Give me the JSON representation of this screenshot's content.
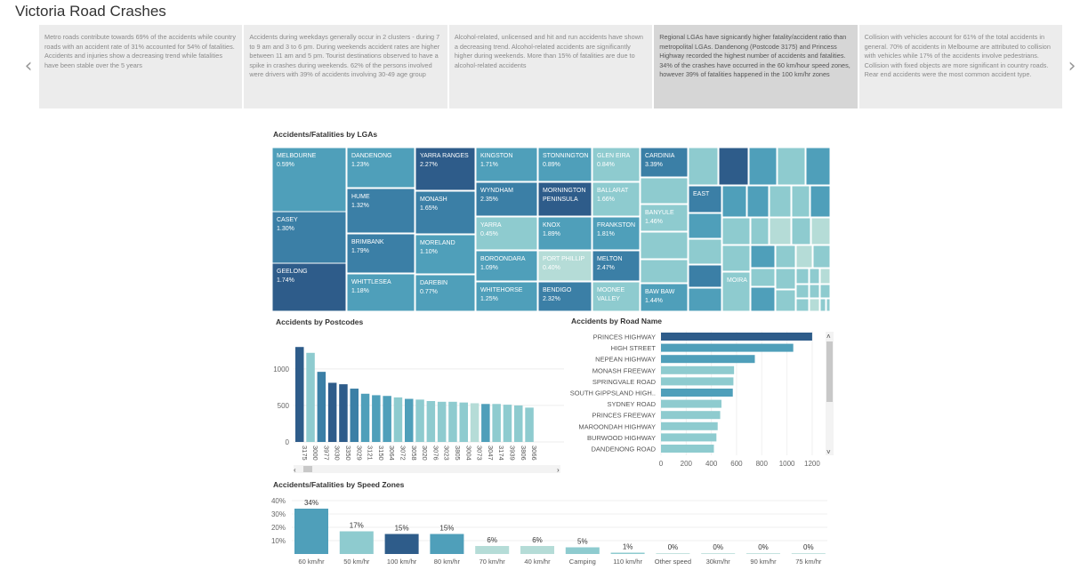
{
  "app": {
    "title": "Victoria Road Crashes"
  },
  "nav": {
    "prev": "‹",
    "next": "›"
  },
  "story_points": [
    "Metro roads contribute towards 69% of the accidents while country roads with an accident rate of 31% accounted for 54% of fatalities. Accidents and injuries show a decreasing trend while fatalities have been stable over the 5 years",
    "Accidents during weekdays generally occur in 2 clusters - during 7 to 9 am and 3 to 6 pm. During weekends accident rates are higher between 11 am and 5 pm. Tourist destinations observed to have a spike in crashes during weekends. 62% of the persons involved were drivers with 39% of accidents involving 30-49 age group",
    "Alcohol-related, unlicensed and hit and run accidents have shown a decreasing trend. Alcohol-related accidents are significantly higher during weekends. More than 15% of fatalities are due to alcohol-related accidents",
    "Regional LGAs have signicantly higher fatality/accident ratio than metropolital LGAs. Dandenong (Postcode 3175) and Princess Highway recorded the highest number of accidents and fatalities. 34% of the crashes have occurred in the 60 km/hour speed zones, however 39% of fatalities happened in the 100 km/hr zones",
    "Collision with vehicles account for 61% of the total accidents in general. 70% of accidents in Melbourne are attributed to collision with vehicles while 17% of the accidents involve pedestrians. Collision with fixed objects are more significant in country roads. Rear end accidents were the most common accident type."
  ],
  "colors": {
    "dark": "#2e5c8a",
    "mid": "#4f9fba",
    "light": "#8ecbcf",
    "pale": "#b5dcd7",
    "scrollbar": "#c8c8c8"
  },
  "chart_data": [
    {
      "type": "treemap",
      "title": "Accidents/Fatalities by LGAs",
      "items": [
        {
          "name": "MELBOURNE",
          "value": "0.59%"
        },
        {
          "name": "CASEY",
          "value": "1.30%"
        },
        {
          "name": "GEELONG",
          "value": "1.74%"
        },
        {
          "name": "DANDENONG",
          "value": "1.23%"
        },
        {
          "name": "HUME",
          "value": "1.32%"
        },
        {
          "name": "BRIMBANK",
          "value": "1.79%"
        },
        {
          "name": "WHITTLESEA",
          "value": "1.18%"
        },
        {
          "name": "YARRA RANGES",
          "value": "2.27%"
        },
        {
          "name": "MONASH",
          "value": "1.65%"
        },
        {
          "name": "MORELAND",
          "value": "1.10%"
        },
        {
          "name": "DAREBIN",
          "value": "0.77%"
        },
        {
          "name": "KINGSTON",
          "value": "1.71%"
        },
        {
          "name": "WYNDHAM",
          "value": "2.35%"
        },
        {
          "name": "YARRA",
          "value": "0.45%"
        },
        {
          "name": "BOROONDARA",
          "value": "1.09%"
        },
        {
          "name": "WHITEHORSE",
          "value": "1.25%"
        },
        {
          "name": "STONNINGTON",
          "value": "0.89%"
        },
        {
          "name": "MORNINGTON PENINSULA",
          "value": ""
        },
        {
          "name": "KNOX",
          "value": "1.89%"
        },
        {
          "name": "PORT PHILLIP",
          "value": "0.40%"
        },
        {
          "name": "BENDIGO",
          "value": "2.32%"
        },
        {
          "name": "GLEN EIRA",
          "value": "0.84%"
        },
        {
          "name": "BALLARAT",
          "value": "1.66%"
        },
        {
          "name": "FRANKSTON",
          "value": "1.81%"
        },
        {
          "name": "MELTON",
          "value": "2.47%"
        },
        {
          "name": "MOONEE VALLEY",
          "value": ""
        },
        {
          "name": "CARDINIA",
          "value": "3.39%"
        },
        {
          "name": "BANYULE",
          "value": "1.46%"
        },
        {
          "name": "BAW BAW",
          "value": "1.44%"
        },
        {
          "name": "EAST",
          "value": ""
        },
        {
          "name": "MOIRA",
          "value": ""
        }
      ]
    },
    {
      "type": "bar",
      "title": "Accidents by Postcodes",
      "categories": [
        "3175",
        "3000",
        "3977",
        "3030",
        "3350",
        "3029",
        "3121",
        "3150",
        "3064",
        "3072",
        "3058",
        "3020",
        "3076",
        "3023",
        "3805",
        "3004",
        "3073",
        "3047",
        "3174",
        "3939",
        "3806",
        "3066"
      ],
      "values": [
        1300,
        1220,
        960,
        810,
        790,
        730,
        660,
        640,
        630,
        610,
        590,
        580,
        560,
        550,
        550,
        540,
        530,
        520,
        520,
        510,
        500,
        470
      ],
      "ylim": [
        0,
        1400
      ],
      "yticks": [
        0,
        500,
        1000
      ]
    },
    {
      "type": "bar",
      "orientation": "horizontal",
      "title": "Accidents by Road Name",
      "categories": [
        "PRINCES HIGHWAY",
        "HIGH STREET",
        "NEPEAN HIGHWAY",
        "MONASH FREEWAY",
        "SPRINGVALE ROAD",
        "SOUTH GIPPSLAND HIGH..",
        "SYDNEY ROAD",
        "PRINCES FREEWAY",
        "MAROONDAH HIGHWAY",
        "BURWOOD HIGHWAY",
        "DANDENONG ROAD"
      ],
      "values": [
        1200,
        1050,
        745,
        580,
        575,
        570,
        480,
        470,
        450,
        440,
        420
      ],
      "xlim": [
        0,
        1250
      ],
      "xticks": [
        0,
        200,
        400,
        600,
        800,
        1000,
        1200
      ]
    },
    {
      "type": "bar",
      "title": "Accidents/Fatalities by Speed Zones",
      "categories": [
        "60 km/hr",
        "50 km/hr",
        "100 km/hr",
        "80 km/hr",
        "70 km/hr",
        "40 km/hr",
        "Camping",
        "110 km/hr",
        "Other speed",
        "30km/hr",
        "90 km/hr",
        "75 km/hr"
      ],
      "values": [
        34,
        17,
        15,
        15,
        6,
        6,
        5,
        1,
        0,
        0,
        0,
        0
      ],
      "labels": [
        "34%",
        "17%",
        "15%",
        "15%",
        "6%",
        "6%",
        "5%",
        "1%",
        "0%",
        "0%",
        "0%",
        "0%"
      ],
      "ylim": [
        0,
        40
      ],
      "yticks": [
        "10%",
        "20%",
        "30%",
        "40%"
      ]
    }
  ]
}
